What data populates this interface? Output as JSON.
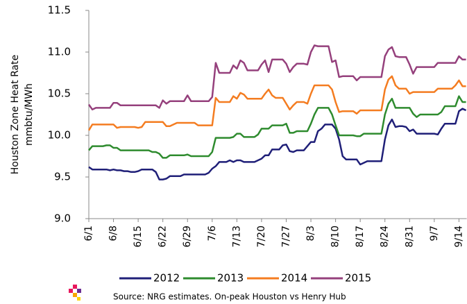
{
  "chart_data": {
    "type": "line",
    "ylabel": [
      "Houston Zone Heat Rate",
      "mmbtu/MWh"
    ],
    "source": "Source:  NRG estimates. On-peak Houston vs Henry Hub",
    "categories": [
      "6/1",
      null,
      null,
      null,
      null,
      null,
      null,
      "6/8",
      null,
      null,
      null,
      null,
      null,
      null,
      "6/15",
      null,
      null,
      null,
      null,
      null,
      null,
      "6/22",
      null,
      null,
      null,
      null,
      null,
      null,
      "6/29",
      null,
      null,
      null,
      null,
      null,
      null,
      "7/6",
      null,
      null,
      null,
      null,
      null,
      null,
      "7/13",
      null,
      null,
      null,
      null,
      null,
      null,
      "7/20",
      null,
      null,
      null,
      null,
      null,
      null,
      "7/27",
      null,
      null,
      null,
      null,
      null,
      null,
      "8/3",
      null,
      null,
      null,
      null,
      null,
      null,
      "8/10",
      null,
      null,
      null,
      null,
      null,
      null,
      "8/17",
      null,
      null,
      null,
      null,
      null,
      null,
      "8/24",
      null,
      null,
      null,
      null,
      null,
      null,
      "8/31",
      null,
      null,
      null,
      null,
      null,
      null,
      "9/7",
      null,
      null,
      null,
      null,
      null,
      null,
      "9/14",
      null,
      null
    ],
    "ylim": [
      9.0,
      11.5
    ],
    "yticks": [
      {
        "value": 9.0,
        "label": "9.0"
      },
      9.5,
      {
        "value": 10.0,
        "label": "10.0"
      },
      10.5,
      {
        "value": 11.0,
        "label": "11.0"
      },
      11.5
    ],
    "grid": false,
    "legend": "bottom",
    "series": [
      {
        "name": "2012",
        "color": "#1f1f78",
        "values": [
          9.62,
          9.59,
          9.59,
          9.59,
          9.59,
          9.59,
          9.58,
          9.59,
          9.58,
          9.58,
          9.57,
          9.57,
          9.56,
          9.56,
          9.57,
          9.59,
          9.59,
          9.59,
          9.59,
          9.56,
          9.47,
          9.47,
          9.48,
          9.51,
          9.51,
          9.51,
          9.51,
          9.53,
          9.53,
          9.53,
          9.53,
          9.53,
          9.53,
          9.53,
          9.55,
          9.6,
          9.63,
          9.68,
          9.68,
          9.68,
          9.7,
          9.68,
          9.7,
          9.7,
          9.68,
          9.68,
          9.68,
          9.68,
          9.7,
          9.72,
          9.76,
          9.76,
          9.83,
          9.83,
          9.83,
          9.88,
          9.89,
          9.81,
          9.8,
          9.82,
          9.82,
          9.82,
          9.87,
          9.92,
          9.92,
          10.05,
          10.08,
          10.13,
          10.13,
          10.13,
          10.08,
          9.95,
          9.75,
          9.71,
          9.71,
          9.71,
          9.71,
          9.65,
          9.67,
          9.69,
          9.69,
          9.69,
          9.69,
          9.69,
          9.95,
          10.12,
          10.19,
          10.1,
          10.11,
          10.11,
          10.1,
          10.05,
          10.07,
          10.02,
          10.02,
          10.02,
          10.02,
          10.02,
          10.02,
          10.01,
          10.08,
          10.14,
          10.14,
          10.14,
          10.14,
          10.29,
          10.32,
          10.3
        ]
      },
      {
        "name": "2013",
        "color": "#2e8b2e",
        "values": [
          9.82,
          9.87,
          9.87,
          9.87,
          9.87,
          9.88,
          9.88,
          9.85,
          9.85,
          9.82,
          9.82,
          9.82,
          9.82,
          9.82,
          9.82,
          9.82,
          9.82,
          9.82,
          9.8,
          9.8,
          9.78,
          9.73,
          9.73,
          9.76,
          9.76,
          9.76,
          9.76,
          9.76,
          9.77,
          9.75,
          9.75,
          9.75,
          9.75,
          9.75,
          9.75,
          9.8,
          9.97,
          9.97,
          9.97,
          9.97,
          9.97,
          9.98,
          10.02,
          10.02,
          9.98,
          9.98,
          9.98,
          9.98,
          10.01,
          10.08,
          10.08,
          10.08,
          10.12,
          10.12,
          10.12,
          10.12,
          10.14,
          10.03,
          10.03,
          10.05,
          10.05,
          10.05,
          10.05,
          10.14,
          10.25,
          10.33,
          10.33,
          10.33,
          10.33,
          10.25,
          10.12,
          10.0,
          10.0,
          10.0,
          10.0,
          10.0,
          9.99,
          9.99,
          10.02,
          10.02,
          10.02,
          10.02,
          10.02,
          10.02,
          10.25,
          10.38,
          10.44,
          10.33,
          10.33,
          10.33,
          10.33,
          10.33,
          10.26,
          10.22,
          10.25,
          10.25,
          10.25,
          10.25,
          10.25,
          10.25,
          10.28,
          10.35,
          10.35,
          10.35,
          10.35,
          10.47,
          10.4,
          10.4
        ]
      },
      {
        "name": "2014",
        "color": "#f47c20",
        "values": [
          10.06,
          10.13,
          10.13,
          10.13,
          10.13,
          10.13,
          10.13,
          10.13,
          10.09,
          10.1,
          10.1,
          10.1,
          10.1,
          10.1,
          10.09,
          10.1,
          10.16,
          10.16,
          10.16,
          10.16,
          10.16,
          10.16,
          10.11,
          10.11,
          10.13,
          10.15,
          10.15,
          10.15,
          10.15,
          10.15,
          10.15,
          10.12,
          10.12,
          10.12,
          10.12,
          10.12,
          10.45,
          10.4,
          10.4,
          10.4,
          10.4,
          10.47,
          10.44,
          10.51,
          10.49,
          10.44,
          10.44,
          10.44,
          10.44,
          10.44,
          10.5,
          10.55,
          10.48,
          10.45,
          10.45,
          10.45,
          10.38,
          10.31,
          10.36,
          10.4,
          10.4,
          10.4,
          10.38,
          10.5,
          10.6,
          10.6,
          10.6,
          10.6,
          10.6,
          10.55,
          10.4,
          10.28,
          10.29,
          10.29,
          10.29,
          10.29,
          10.26,
          10.3,
          10.3,
          10.3,
          10.3,
          10.3,
          10.3,
          10.3,
          10.55,
          10.67,
          10.71,
          10.6,
          10.56,
          10.56,
          10.56,
          10.5,
          10.52,
          10.52,
          10.52,
          10.52,
          10.52,
          10.52,
          10.52,
          10.56,
          10.56,
          10.56,
          10.56,
          10.56,
          10.6,
          10.66,
          10.59,
          10.59
        ]
      },
      {
        "name": "2015",
        "color": "#95407c",
        "values": [
          10.37,
          10.31,
          10.33,
          10.33,
          10.33,
          10.33,
          10.33,
          10.39,
          10.39,
          10.36,
          10.36,
          10.36,
          10.36,
          10.36,
          10.36,
          10.36,
          10.36,
          10.36,
          10.36,
          10.36,
          10.33,
          10.42,
          10.38,
          10.41,
          10.41,
          10.41,
          10.41,
          10.41,
          10.48,
          10.41,
          10.41,
          10.41,
          10.41,
          10.41,
          10.41,
          10.46,
          10.87,
          10.75,
          10.75,
          10.75,
          10.75,
          10.84,
          10.8,
          10.9,
          10.87,
          10.78,
          10.78,
          10.78,
          10.78,
          10.85,
          10.9,
          10.76,
          10.91,
          10.91,
          10.91,
          10.91,
          10.86,
          10.76,
          10.82,
          10.86,
          10.86,
          10.86,
          10.85,
          11.0,
          11.08,
          11.07,
          11.07,
          11.07,
          11.07,
          10.88,
          10.9,
          10.7,
          10.71,
          10.71,
          10.71,
          10.71,
          10.66,
          10.7,
          10.7,
          10.7,
          10.7,
          10.7,
          10.7,
          10.7,
          10.95,
          11.03,
          11.06,
          10.95,
          10.94,
          10.94,
          10.94,
          10.85,
          10.74,
          10.82,
          10.82,
          10.82,
          10.82,
          10.82,
          10.82,
          10.87,
          10.87,
          10.87,
          10.87,
          10.87,
          10.87,
          10.95,
          10.91,
          10.91
        ]
      }
    ]
  }
}
